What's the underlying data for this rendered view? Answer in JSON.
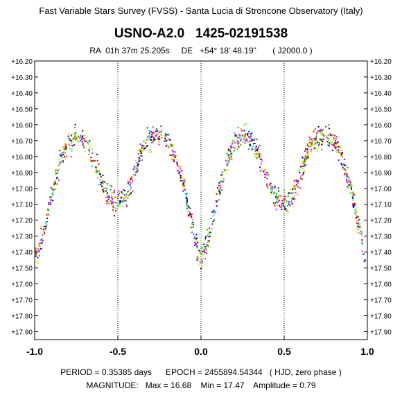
{
  "header": {
    "survey": "Fast Variable Stars Survey (FVSS) - Santa Lucia di Stroncone Observatory (Italy)",
    "star_id": "USNO-A2.0   1425-02191538",
    "coords": "RA  01h 37m 25.205s     DE   +54° 18' 48.19\"       ( J2000.0 )"
  },
  "footer": {
    "line1": "PERIOD = 0.35385 days      EPOCH = 2455894.54344   ( HJD, zero phase )",
    "line2": "MAGNITUDE:   Max = 16.68    Min = 17.47    Amplitude = 0.79"
  },
  "chart_data": {
    "type": "scatter",
    "title": "USNO-A2.0   1425-02191538",
    "xlabel": "",
    "ylabel": "",
    "xlim": [
      -1.0,
      1.0
    ],
    "ylim": [
      16.2,
      17.95
    ],
    "y_inverted": true,
    "x_ticks": [
      "-1.0",
      "-0.5",
      "0.0",
      "0.5",
      "1.0"
    ],
    "y_ticks": [
      "+16.20",
      "+16.30",
      "+16.40",
      "+16.50",
      "+16.60",
      "+16.70",
      "+16.80",
      "+16.90",
      "+17.00",
      "+17.10",
      "+17.20",
      "+17.30",
      "+17.40",
      "+17.50",
      "+17.60",
      "+17.70",
      "+17.80",
      "+17.90"
    ],
    "grid": "vertical dotted at x = -0.5, 0, 0.5",
    "point_colors": [
      "#ff0000",
      "#00c000",
      "#0000ff",
      "#e8e800",
      "#ff00ff",
      "#00e0e0",
      "#ff8000",
      "#80ff00",
      "#8000ff",
      "#000000"
    ],
    "light_curve_model": {
      "phase": [
        0.0,
        0.05,
        0.1,
        0.15,
        0.2,
        0.25,
        0.3,
        0.35,
        0.4,
        0.45,
        0.5,
        0.55,
        0.6,
        0.65,
        0.7,
        0.75,
        0.8,
        0.85,
        0.9,
        0.95,
        1.0
      ],
      "magnitude": [
        17.45,
        17.3,
        17.05,
        16.85,
        16.72,
        16.67,
        16.7,
        16.8,
        16.95,
        17.07,
        17.1,
        17.05,
        16.9,
        16.75,
        16.68,
        16.66,
        16.7,
        16.82,
        17.0,
        17.25,
        17.47
      ],
      "scatter": 0.05
    }
  }
}
